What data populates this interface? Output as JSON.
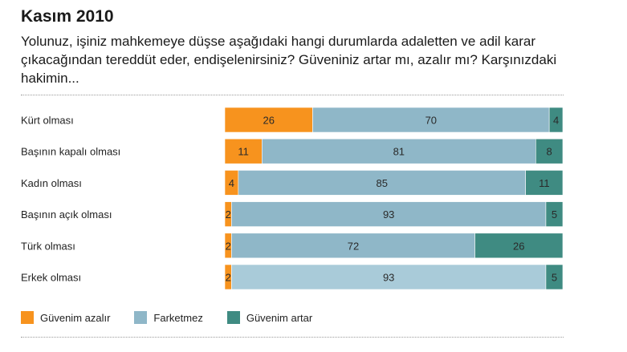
{
  "title": "Kasım 2010",
  "subtitle": "Yolunuz, işiniz mahkemeye düşse aşağıdaki hangi durumlarda adaletten ve adil karar çıkacağından tereddüt eder, endişelenirsiniz? Güveniniz artar mı, azalır mı? Karşınızdaki hakimin...",
  "colors": {
    "azalir": "#f7931e",
    "farketmez": "#8fb7c8",
    "farketmez_light": "#a9cbd9",
    "artar": "#3f8b82"
  },
  "chart_data": {
    "type": "bar",
    "orientation": "horizontal",
    "stacked": true,
    "unit": "%",
    "title": "Kasım 2010",
    "categories": [
      "Kürt olması",
      "Başının kapalı olması",
      "Kadın olması",
      "Başının açık olması",
      "Türk olması",
      "Erkek olması"
    ],
    "series": [
      {
        "name": "Güvenim azalır",
        "values": [
          26,
          11,
          4,
          2,
          2,
          2
        ]
      },
      {
        "name": "Farketmez",
        "values": [
          70,
          81,
          85,
          93,
          72,
          93
        ]
      },
      {
        "name": "Güvenim artar",
        "values": [
          4,
          8,
          11,
          5,
          26,
          5
        ]
      }
    ],
    "xlim": [
      0,
      100
    ],
    "legend_position": "bottom-left"
  },
  "legend": {
    "azalir": "Güvenim azalır",
    "farketmez": "Farketmez",
    "artar": "Güvenim artar"
  }
}
